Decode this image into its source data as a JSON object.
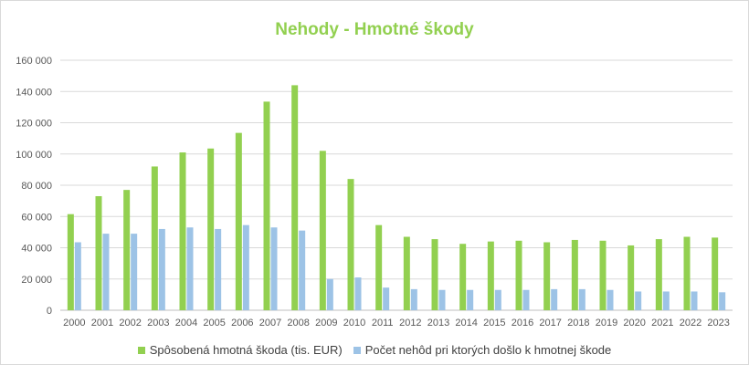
{
  "chart_data": {
    "type": "bar",
    "title": "Nehody - Hmotné škody",
    "xlabel": "",
    "ylabel": "",
    "ylim": [
      0,
      160000
    ],
    "yticks": [
      0,
      20000,
      40000,
      60000,
      80000,
      100000,
      120000,
      140000,
      160000
    ],
    "ytick_labels": [
      "0",
      "20 000",
      "40 000",
      "60 000",
      "80 000",
      "100 000",
      "120 000",
      "140 000",
      "160 000"
    ],
    "grid": true,
    "legend_position": "bottom",
    "categories": [
      "2000",
      "2001",
      "2002",
      "2003",
      "2004",
      "2005",
      "2006",
      "2007",
      "2008",
      "2009",
      "2010",
      "2011",
      "2012",
      "2013",
      "2014",
      "2015",
      "2016",
      "2017",
      "2018",
      "2019",
      "2020",
      "2021",
      "2022",
      "2023"
    ],
    "series": [
      {
        "name": "Spôsobená hmotná škoda (tis. EUR)",
        "color": "#92d050",
        "values": [
          61500,
          73000,
          77000,
          92000,
          101000,
          103500,
          113500,
          133500,
          144000,
          102000,
          84000,
          54500,
          47000,
          45500,
          42500,
          44000,
          44500,
          43500,
          45000,
          44500,
          41500,
          45500,
          47000,
          46500
        ]
      },
      {
        "name": "Počet nehôd pri ktorých došlo k hmotnej škode",
        "color": "#9dc3e6",
        "values": [
          43500,
          49000,
          49000,
          52000,
          53000,
          52000,
          54500,
          53000,
          51000,
          20000,
          21000,
          14500,
          13500,
          13000,
          13000,
          13000,
          13000,
          13500,
          13500,
          13000,
          12000,
          12000,
          12000,
          11500
        ]
      }
    ]
  }
}
